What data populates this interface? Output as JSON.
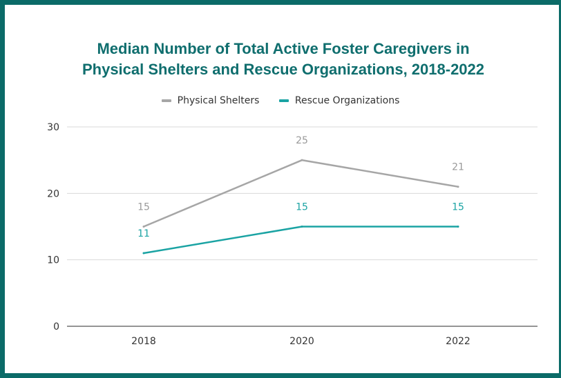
{
  "chart_data": {
    "type": "line",
    "title_line1": "Median Number of Total Active Foster Caregivers in",
    "title_line2": "Physical Shelters and Rescue Organizations, 2018-2022",
    "categories": [
      "2018",
      "2020",
      "2022"
    ],
    "series": [
      {
        "name": "Physical Shelters",
        "values": [
          15,
          25,
          21
        ],
        "color": "#a6a6a6",
        "label_color": "#999999"
      },
      {
        "name": "Rescue Organizations",
        "values": [
          11,
          15,
          15
        ],
        "color": "#1aa3a3",
        "label_color": "#1aa3a3"
      }
    ],
    "ylim": [
      0,
      30
    ],
    "yticks": [
      0,
      10,
      20,
      30
    ],
    "grid": true,
    "legend_position": "top-center",
    "xlabel": "",
    "ylabel": ""
  }
}
